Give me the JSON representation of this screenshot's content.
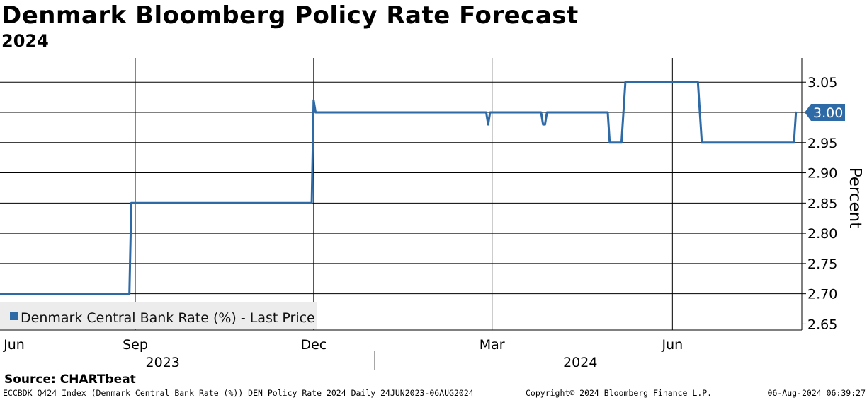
{
  "header": {
    "title": "Denmark Bloomberg Policy Rate Forecast",
    "subtitle": "2024"
  },
  "footer": {
    "source": "Source: CHARTbeat",
    "ticker": "ECCBDK Q424 Index (Denmark Central Bank Rate (%)) DEN Policy Rate 2024  Daily 24JUN2023-06AUG2024",
    "copyright": "Copyright© 2024 Bloomberg Finance L.P.",
    "timestamp": "06-Aug-2024 06:39:27"
  },
  "colors": {
    "series": "#2e6aa6",
    "label_bg": "#2e6aa6",
    "legend_bg": "#ececec"
  },
  "chart_data": {
    "type": "line",
    "title": "Denmark Bloomberg Policy Rate Forecast",
    "subtitle": "2024",
    "xlabel": "",
    "ylabel": "Percent",
    "ylim": [
      2.64,
      3.09
    ],
    "yticks": [
      2.65,
      2.7,
      2.75,
      2.8,
      2.85,
      2.9,
      2.95,
      3.0,
      3.05
    ],
    "ytick_labels": [
      "2.65",
      "2.70",
      "2.75",
      "2.80",
      "2.85",
      "2.90",
      "2.95",
      "3.00",
      "3.05"
    ],
    "xlim": [
      "2023-06-24",
      "2024-08-06"
    ],
    "grid": true,
    "month_ticks": [
      {
        "date": "2023-06-01",
        "label": "Jun"
      },
      {
        "date": "2023-09-01",
        "label": "Sep"
      },
      {
        "date": "2023-12-01",
        "label": "Dec"
      },
      {
        "date": "2024-03-01",
        "label": "Mar"
      },
      {
        "date": "2024-06-01",
        "label": "Jun"
      }
    ],
    "year_labels": [
      {
        "center": "2023-09-15",
        "label": "2023"
      },
      {
        "center": "2024-04-15",
        "label": "2024"
      }
    ],
    "year_divider": "2024-01-01",
    "last_value_label": "3.00",
    "legend": {
      "label": "Denmark Central Bank Rate (%) - Last Price",
      "position": "bottom-left"
    },
    "series": [
      {
        "name": "Denmark Central Bank Rate (%) - Last Price",
        "points": [
          [
            "2023-06-24",
            2.7
          ],
          [
            "2023-08-29",
            2.7
          ],
          [
            "2023-08-30",
            2.85
          ],
          [
            "2023-11-30",
            2.85
          ],
          [
            "2023-12-01",
            3.02
          ],
          [
            "2023-12-02",
            3.0
          ],
          [
            "2024-02-27",
            3.0
          ],
          [
            "2024-02-28",
            2.98
          ],
          [
            "2024-02-29",
            3.0
          ],
          [
            "2024-03-26",
            3.0
          ],
          [
            "2024-03-27",
            2.98
          ],
          [
            "2024-03-28",
            2.98
          ],
          [
            "2024-03-29",
            3.0
          ],
          [
            "2024-04-29",
            3.0
          ],
          [
            "2024-04-30",
            2.95
          ],
          [
            "2024-05-06",
            2.95
          ],
          [
            "2024-05-08",
            3.05
          ],
          [
            "2024-06-14",
            3.05
          ],
          [
            "2024-06-16",
            2.95
          ],
          [
            "2024-08-02",
            2.95
          ],
          [
            "2024-08-03",
            3.0
          ]
        ]
      }
    ]
  }
}
